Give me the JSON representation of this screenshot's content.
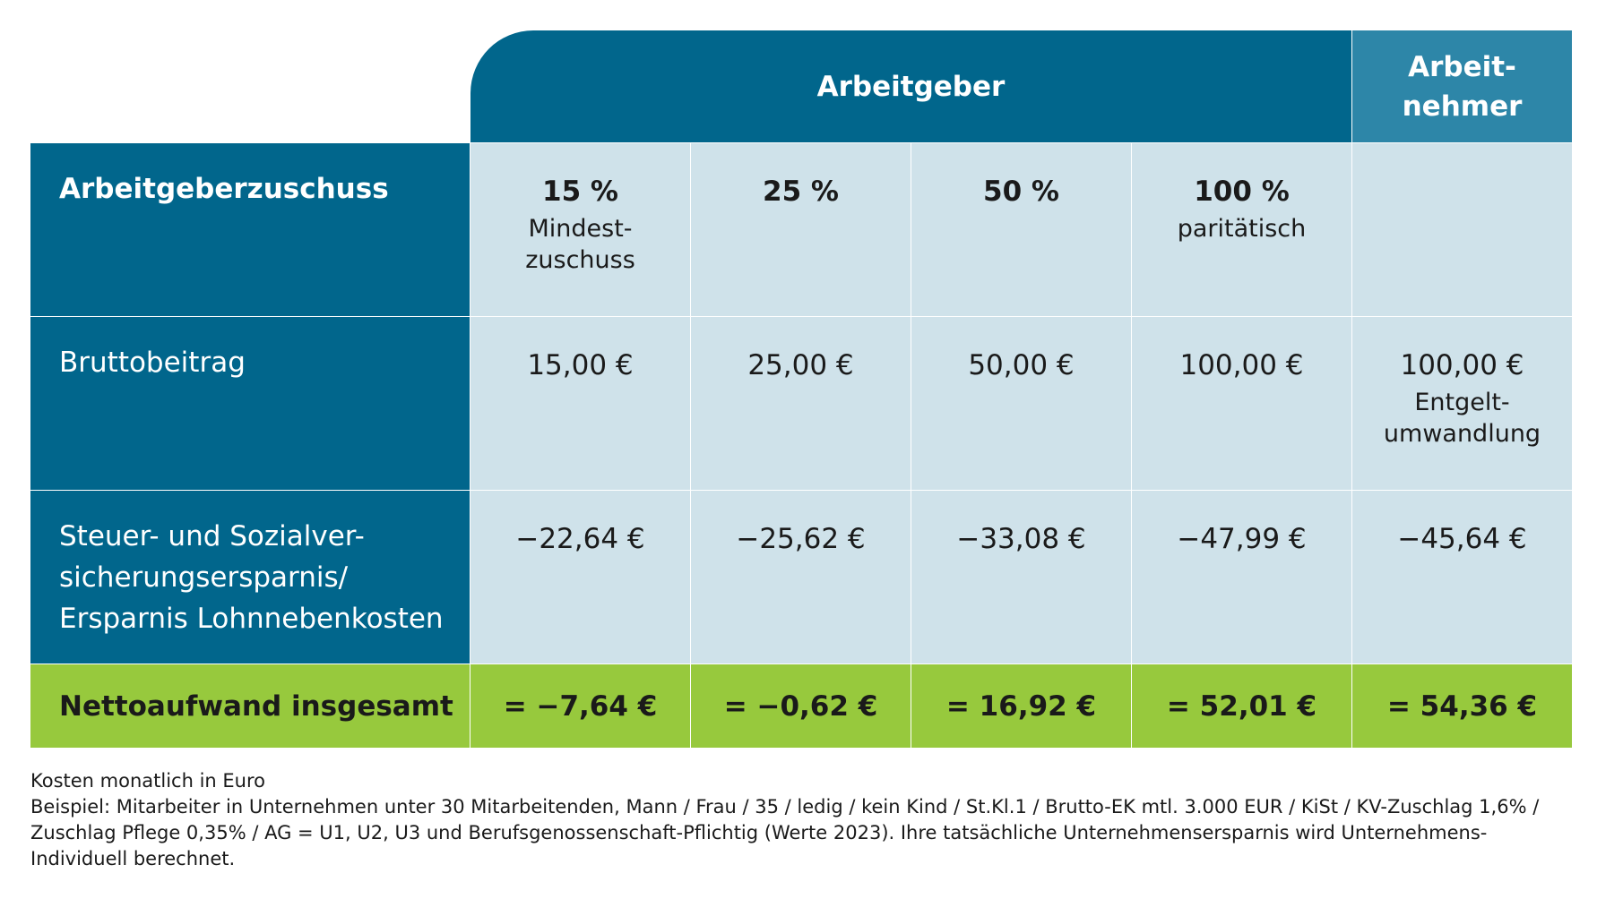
{
  "header": {
    "arbeitgeber": "Arbeitgeber",
    "arbeitnehmer_line1": "Arbeit-",
    "arbeitnehmer_line2": "nehmer"
  },
  "rows": {
    "zuschuss": {
      "label": "Arbeitgeberzuschuss",
      "cols": [
        {
          "main": "15 %",
          "sub1": "Mindest-",
          "sub2": "zuschuss"
        },
        {
          "main": "25 %",
          "sub1": "",
          "sub2": ""
        },
        {
          "main": "50 %",
          "sub1": "",
          "sub2": ""
        },
        {
          "main": "100 %",
          "sub1": "paritätisch",
          "sub2": ""
        },
        {
          "main": "",
          "sub1": "",
          "sub2": ""
        }
      ]
    },
    "brutto": {
      "label": "Bruttobeitrag",
      "cols": [
        {
          "main": "15,00 €",
          "sub1": "",
          "sub2": ""
        },
        {
          "main": "25,00 €",
          "sub1": "",
          "sub2": ""
        },
        {
          "main": "50,00 €",
          "sub1": "",
          "sub2": ""
        },
        {
          "main": "100,00 €",
          "sub1": "",
          "sub2": ""
        },
        {
          "main": "100,00 €",
          "sub1": "Entgelt-",
          "sub2": "umwandlung"
        }
      ]
    },
    "ersparnis": {
      "label_line1": "Steuer- und Sozialver-",
      "label_line2": "sicherungsersparnis/",
      "label_line3": "Ersparnis Lohnnebenkosten",
      "cols": [
        "−22,64 €",
        "−25,62 €",
        "−33,08 €",
        "−47,99 €",
        "−45,64 €"
      ]
    },
    "netto": {
      "label": "Nettoaufwand insgesamt",
      "cols": [
        "= −7,64 €",
        "= −0,62 €",
        "= 16,92 €",
        "= 52,01 €",
        "= 54,36 €"
      ]
    }
  },
  "notes": {
    "line1": "Kosten monatlich in Euro",
    "line2": "Beispiel: Mitarbeiter in Unternehmen unter 30 Mitarbeitenden, Mann / Frau / 35 / ledig / kein Kind / St.Kl.1 / Brutto-EK mtl. 3.000 EUR / KiSt / KV-Zuschlag 1,6% / Zuschlag Pflege 0,35% / AG = U1, U2, U3 und Berufsgenossenschaft-Pflichtig (Werte 2023). Ihre tatsächliche Unternehmensersparnis wird Unternehmens-Individuell berechnet."
  },
  "colors": {
    "dark_blue": "#01668c",
    "mid_blue": "#2d86a8",
    "light_blue": "#cfe2ea",
    "green": "#97c93d"
  }
}
